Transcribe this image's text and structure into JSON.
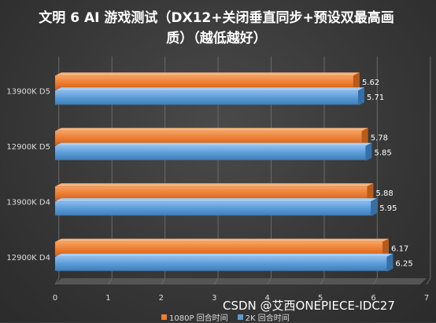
{
  "chart_data": {
    "type": "bar",
    "orientation": "horizontal",
    "title": "文明 6 AI 游戏测试（DX12+关闭垂直同步+预设双最高画质）（越低越好）",
    "categories": [
      "13900K D5",
      "12900K D5",
      "13900K D4",
      "12900K D4"
    ],
    "series": [
      {
        "name": "1080P 回合时间",
        "values": [
          5.62,
          5.78,
          5.88,
          6.17
        ],
        "color": "#ed7d31"
      },
      {
        "name": "2K 回合时间",
        "values": [
          5.71,
          5.85,
          5.95,
          6.25
        ],
        "color": "#5b9bd5"
      }
    ],
    "xlim": [
      0,
      7
    ],
    "x_ticks": [
      "0",
      "1",
      "2",
      "3",
      "4",
      "5",
      "6",
      "7"
    ],
    "grid": true,
    "legend_position": "bottom"
  },
  "watermark": "CSDN @艾西ONEPIECE-IDC27"
}
